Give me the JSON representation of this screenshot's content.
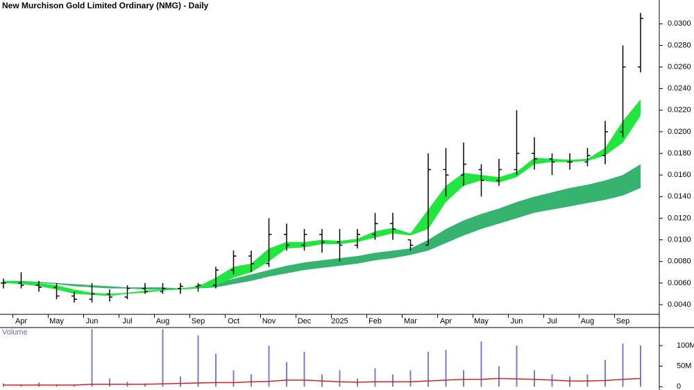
{
  "chart_data": [
    {
      "type": "candlestick",
      "title": "New Murchison Gold Limited Ordinary (NMG) - Daily",
      "color": "#000000",
      "categories": [
        null,
        "Apr",
        null,
        "May",
        null,
        "Jun",
        null,
        "Jul",
        null,
        "Aug",
        null,
        "Sep",
        null,
        "Oct",
        null,
        "Nov",
        null,
        "Dec",
        null,
        "2025",
        null,
        "Feb",
        null,
        "Mar",
        null,
        "Apr",
        null,
        "May",
        null,
        "Jun",
        null,
        "Jul",
        null,
        "Aug",
        null,
        "Sep",
        null
      ],
      "open": [
        0.006,
        0.006,
        0.0058,
        0.0056,
        0.0048,
        0.0045,
        0.005,
        0.0047,
        0.0055,
        0.0052,
        0.0055,
        0.0057,
        0.0058,
        0.0072,
        0.0085,
        0.0078,
        0.0105,
        0.0095,
        0.0105,
        0.0098,
        0.0095,
        0.0105,
        0.0115,
        0.01,
        0.0095,
        0.0165,
        0.016,
        0.0165,
        0.0155,
        0.0165,
        0.018,
        0.0175,
        0.0172,
        0.0172,
        0.0178,
        0.02,
        0.026
      ],
      "high": [
        0.0064,
        0.007,
        0.0062,
        0.006,
        0.0052,
        0.006,
        0.0054,
        0.0058,
        0.006,
        0.006,
        0.006,
        0.006,
        0.0075,
        0.009,
        0.009,
        0.012,
        0.0115,
        0.011,
        0.011,
        0.011,
        0.011,
        0.0125,
        0.0125,
        0.01,
        0.018,
        0.0185,
        0.019,
        0.017,
        0.0175,
        0.022,
        0.0195,
        0.018,
        0.018,
        0.0185,
        0.021,
        0.028,
        0.031
      ],
      "low": [
        0.0055,
        0.0055,
        0.0052,
        0.0045,
        0.0042,
        0.0042,
        0.0043,
        0.0045,
        0.005,
        0.005,
        0.005,
        0.0052,
        0.0055,
        0.0068,
        0.007,
        0.0075,
        0.009,
        0.009,
        0.0088,
        0.008,
        0.0092,
        0.01,
        0.01,
        0.009,
        0.0095,
        0.014,
        0.015,
        0.014,
        0.015,
        0.016,
        0.0165,
        0.016,
        0.0165,
        0.0168,
        0.017,
        0.0195,
        0.0255
      ],
      "close": [
        0.006,
        0.0058,
        0.0056,
        0.0048,
        0.0045,
        0.005,
        0.0047,
        0.0055,
        0.0052,
        0.0055,
        0.0057,
        0.0058,
        0.0072,
        0.0085,
        0.0078,
        0.0105,
        0.0095,
        0.0105,
        0.0098,
        0.0095,
        0.0105,
        0.0115,
        0.011,
        0.0095,
        0.0165,
        0.016,
        0.017,
        0.0155,
        0.0165,
        0.018,
        0.0175,
        0.0172,
        0.0172,
        0.0178,
        0.02,
        0.026,
        0.0305
      ],
      "ribbons": [
        {
          "color": "#36b36e",
          "upper": [
            0.0062,
            0.0062,
            0.0061,
            0.006,
            0.0059,
            0.0058,
            0.0057,
            0.0056,
            0.0056,
            0.0056,
            0.0055,
            0.0056,
            0.006,
            0.0064,
            0.0068,
            0.0072,
            0.0076,
            0.0079,
            0.0081,
            0.0083,
            0.0085,
            0.0088,
            0.009,
            0.0092,
            0.01,
            0.011,
            0.0118,
            0.0124,
            0.0129,
            0.0135,
            0.014,
            0.0144,
            0.0148,
            0.0151,
            0.0155,
            0.016,
            0.017
          ],
          "lower": [
            0.0061,
            0.0061,
            0.006,
            0.0059,
            0.0057,
            0.0056,
            0.0055,
            0.0055,
            0.0054,
            0.0054,
            0.0054,
            0.0055,
            0.0056,
            0.0059,
            0.0062,
            0.0066,
            0.0069,
            0.0072,
            0.0074,
            0.0076,
            0.0078,
            0.0081,
            0.0083,
            0.0086,
            0.009,
            0.0097,
            0.0104,
            0.011,
            0.0115,
            0.012,
            0.0125,
            0.0128,
            0.0131,
            0.0134,
            0.0137,
            0.0141,
            0.0148
          ]
        },
        {
          "color": "#22e640",
          "upper": [
            0.0062,
            0.0061,
            0.006,
            0.0058,
            0.0054,
            0.0051,
            0.005,
            0.0051,
            0.0053,
            0.0054,
            0.0055,
            0.0057,
            0.0065,
            0.0075,
            0.0078,
            0.0092,
            0.0098,
            0.0098,
            0.01,
            0.0099,
            0.0101,
            0.0108,
            0.0111,
            0.0106,
            0.0128,
            0.015,
            0.0162,
            0.016,
            0.0158,
            0.0163,
            0.0176,
            0.0175,
            0.0174,
            0.0175,
            0.0185,
            0.021,
            0.023
          ],
          "lower": [
            0.006,
            0.0059,
            0.0057,
            0.0054,
            0.005,
            0.0049,
            0.0048,
            0.005,
            0.0051,
            0.0053,
            0.0054,
            0.0055,
            0.0058,
            0.0065,
            0.007,
            0.008,
            0.0092,
            0.0093,
            0.0096,
            0.0096,
            0.0098,
            0.0102,
            0.0106,
            0.0104,
            0.011,
            0.0135,
            0.015,
            0.0155,
            0.0153,
            0.0158,
            0.017,
            0.0172,
            0.0172,
            0.0173,
            0.0178,
            0.019,
            0.0215
          ]
        }
      ],
      "ylim": [
        0.0031,
        0.0322
      ],
      "yticks": [
        {
          "value": 0.004,
          "label": "0.0040"
        },
        {
          "value": 0.006,
          "label": "0.0060"
        },
        {
          "value": 0.008,
          "label": "0.0080"
        },
        {
          "value": 0.01,
          "label": "0.0100"
        },
        {
          "value": 0.012,
          "label": "0.0120"
        },
        {
          "value": 0.014,
          "label": "0.0140"
        },
        {
          "value": 0.016,
          "label": "0.0160"
        },
        {
          "value": 0.018,
          "label": "0.0180"
        },
        {
          "value": 0.02,
          "label": "0.0200"
        },
        {
          "value": 0.022,
          "label": "0.0220"
        },
        {
          "value": 0.024,
          "label": "0.0240"
        },
        {
          "value": 0.026,
          "label": "0.0260"
        },
        {
          "value": 0.028,
          "label": "0.0280"
        },
        {
          "value": 0.03,
          "label": "0.0300"
        }
      ]
    },
    {
      "type": "bar",
      "title": "Volume",
      "color": "#7a7acc",
      "values": [
        8000000,
        5000000,
        10000000,
        6000000,
        5000000,
        140000000,
        20000000,
        12000000,
        8000000,
        140000000,
        25000000,
        125000000,
        80000000,
        40000000,
        30000000,
        100000000,
        60000000,
        85000000,
        30000000,
        40000000,
        20000000,
        45000000,
        30000000,
        40000000,
        85000000,
        90000000,
        40000000,
        110000000,
        50000000,
        100000000,
        40000000,
        30000000,
        25000000,
        30000000,
        65000000,
        105000000,
        100000000
      ],
      "average": {
        "color": "#d42020",
        "values": [
          4000000,
          4000000,
          4000000,
          4000000,
          4000000,
          6000000,
          6000000,
          6000000,
          6000000,
          7000000,
          8000000,
          9000000,
          10000000,
          10000000,
          12000000,
          13000000,
          16000000,
          16000000,
          14000000,
          12000000,
          11000000,
          12000000,
          12000000,
          12000000,
          14000000,
          16000000,
          18000000,
          18000000,
          20000000,
          19000000,
          18000000,
          16000000,
          14000000,
          14000000,
          15000000,
          18000000,
          20000000
        ]
      },
      "ylim": [
        -8000000,
        144000000
      ],
      "yticks": [
        0,
        {
          "value": 50000000,
          "label": "50M"
        },
        {
          "value": 100000000,
          "label": "100M"
        }
      ]
    }
  ]
}
